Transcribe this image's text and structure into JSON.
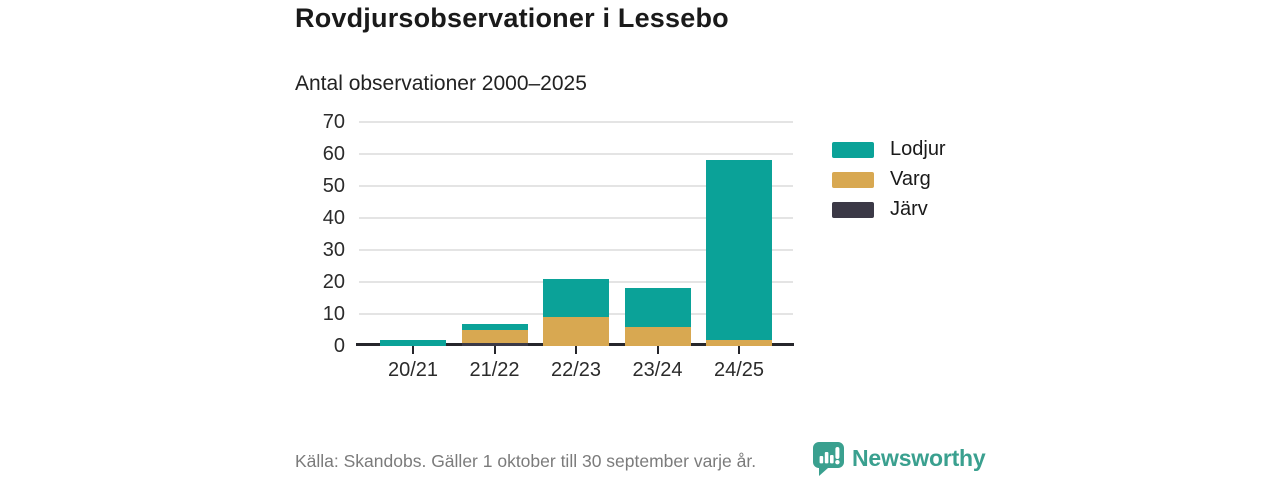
{
  "title": "Rovdjursobservationer i Lessebo",
  "chart_data": {
    "type": "bar",
    "stacked": true,
    "title": "Antal observationer 2000–2025",
    "xlabel": "",
    "ylabel": "",
    "categories": [
      "20/21",
      "21/22",
      "22/23",
      "23/24",
      "24/25"
    ],
    "series": [
      {
        "name": "Lodjur",
        "color": "#0ba298",
        "values": [
          2,
          2,
          12,
          12,
          56
        ]
      },
      {
        "name": "Varg",
        "color": "#d8a851",
        "values": [
          0,
          4,
          9,
          6,
          2
        ]
      },
      {
        "name": "Järv",
        "color": "#3b3946",
        "values": [
          0,
          1,
          0,
          0,
          0
        ]
      }
    ],
    "stack_order_bottom_to_top": [
      "Järv",
      "Varg",
      "Lodjur"
    ],
    "totals": [
      2,
      7,
      21,
      18,
      58
    ],
    "ylim": [
      0,
      70
    ],
    "yticks": [
      0,
      10,
      20,
      30,
      40,
      50,
      60,
      70
    ],
    "grid": true,
    "legend": [
      "Lodjur",
      "Varg",
      "Järv"
    ],
    "legend_position": "right"
  },
  "footer": {
    "source": "Källa: Skandobs. Gäller 1 oktober till 30 september varje år.",
    "brand": "Newsworthy"
  },
  "colors": {
    "lodjur_teal": "#0ba298",
    "varg_gold": "#d8a851",
    "jarv_dark": "#3b3946",
    "brand_teal": "#3aa08f",
    "grid_gray": "#e4e4e4",
    "axis_dark": "#26262b",
    "title_text": "#1a1a1a",
    "tick_text": "#2b2b2b",
    "muted_text": "#7b7b7b"
  }
}
